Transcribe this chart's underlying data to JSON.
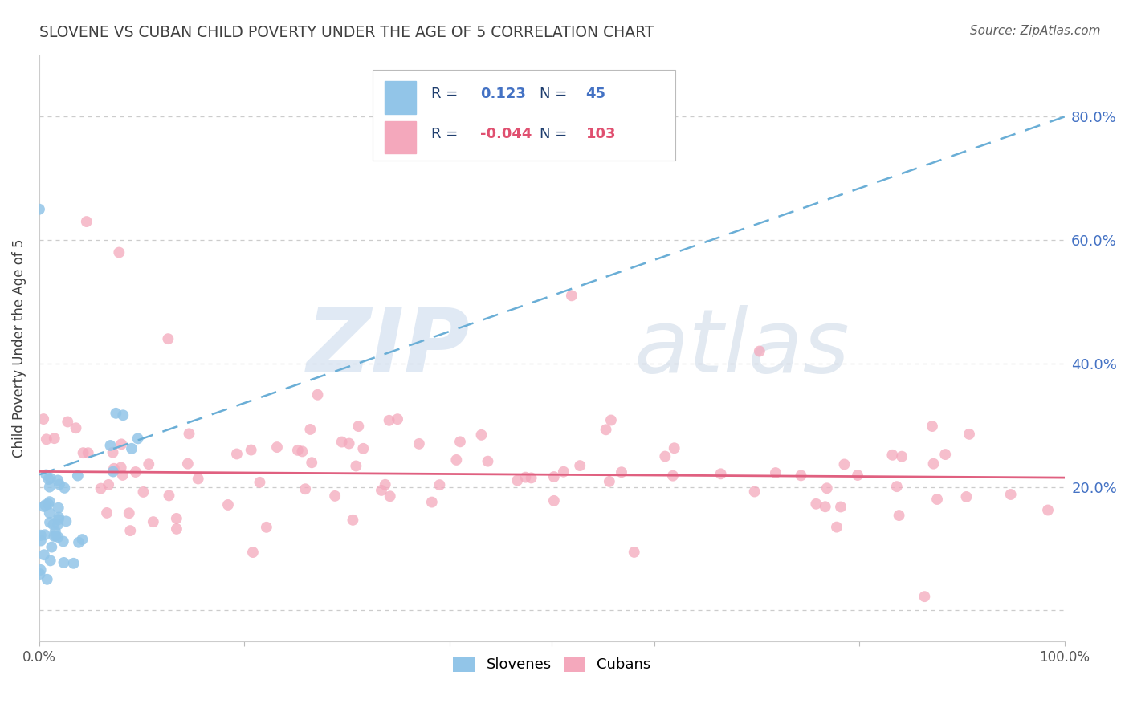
{
  "title": "SLOVENE VS CUBAN CHILD POVERTY UNDER THE AGE OF 5 CORRELATION CHART",
  "source": "Source: ZipAtlas.com",
  "ylabel": "Child Poverty Under the Age of 5",
  "xlim": [
    0.0,
    1.0
  ],
  "ylim": [
    -0.05,
    0.9
  ],
  "ytick_positions": [
    0.0,
    0.2,
    0.4,
    0.6,
    0.8
  ],
  "ytick_labels": [
    "",
    "20.0%",
    "40.0%",
    "60.0%",
    "80.0%"
  ],
  "slovene_color": "#92C5E8",
  "cuban_color": "#F4A8BC",
  "slovene_line_color": "#6AAED6",
  "cuban_line_color": "#E06080",
  "watermark_zip": "ZIP",
  "watermark_atlas": "atlas",
  "background_color": "#FFFFFF",
  "grid_color": "#CCCCCC",
  "title_color": "#404040",
  "source_color": "#606060",
  "ylabel_color": "#404040",
  "rtick_color": "#4472C4",
  "legend_r_color": "#1F3E6E",
  "legend_n_color": "#1F3E6E",
  "legend_r1_val": "0.123",
  "legend_n1_val": "45",
  "legend_r2_val": "-0.044",
  "legend_n2_val": "103",
  "sl_trend_start_y": 0.22,
  "sl_trend_slope": 0.58,
  "cu_trend_start_y": 0.225,
  "cu_trend_slope": -0.01
}
